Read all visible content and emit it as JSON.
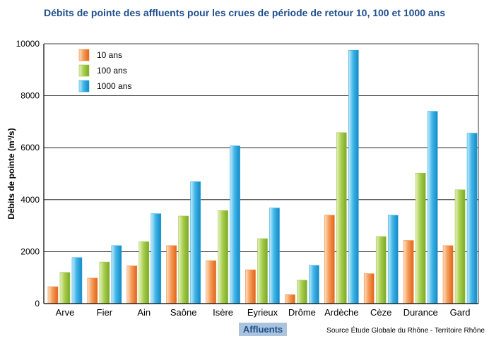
{
  "chart_data": {
    "type": "bar",
    "title": "Débits de pointe des affluents pour les crues de période de retour 10, 100 et 1000 ans",
    "xlabel": "Affluents",
    "ylabel": "Débits de pointe (m³/s)",
    "source": "Source Étude Globale du Rhône - Territoire Rhône",
    "ylim": [
      0,
      10000
    ],
    "yticks": [
      "0",
      "2000",
      "4000",
      "6000",
      "8000",
      "10000"
    ],
    "grid": true,
    "legend_position": "top-left",
    "categories": [
      "Arve",
      "Fier",
      "Ain",
      "Saône",
      "Isère",
      "Eyrieux",
      "Drôme",
      "Ardèche",
      "Cèze",
      "Durance",
      "Gard"
    ],
    "series": [
      {
        "name": "10 ans",
        "color": "#f0833a",
        "values": [
          650,
          980,
          1450,
          2230,
          1650,
          1300,
          340,
          3400,
          1150,
          2430,
          2230
        ]
      },
      {
        "name": "100 ans",
        "color": "#9cc63b",
        "values": [
          1200,
          1600,
          2380,
          3370,
          3580,
          2500,
          900,
          6580,
          2580,
          5020,
          4380
        ]
      },
      {
        "name": "1000 ans",
        "color": "#29a9e0",
        "values": [
          1770,
          2230,
          3460,
          4690,
          6070,
          3680,
          1470,
          9750,
          3400,
          7400,
          6560
        ]
      }
    ]
  }
}
